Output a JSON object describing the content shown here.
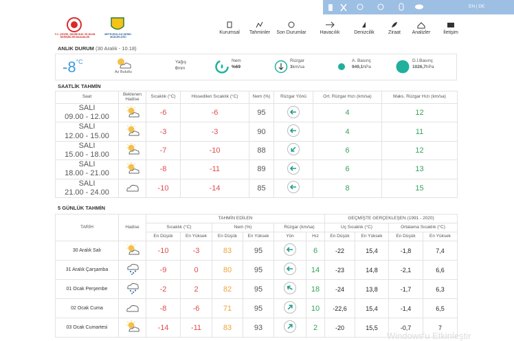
{
  "topbar": {
    "langs": [
      "EN",
      "DE"
    ],
    "separator": "|"
  },
  "header": {
    "org1": "T.C. ÇEVRE, ŞEHİRCİLİK VE İKLİM DEĞİŞİKLİĞİ BAKANLIĞI",
    "org2": "METEOROLOJİ GENEL MÜDÜRLÜĞÜ",
    "nav": [
      "Kurumsal",
      "Tahminler",
      "Son Durumlar",
      "Havacılık",
      "Denizcilik",
      "Ziraat",
      "Analizler",
      "İletişim"
    ]
  },
  "current": {
    "title": "ANLIK DURUM",
    "time": "(30 Aralık - 10.18)",
    "temp": "-8",
    "temp_unit": "°C",
    "condition": "Az Bulutlu",
    "rain_label": "Yağış",
    "rain": "0",
    "rain_unit": "mm",
    "humidity_label": "Nem",
    "humidity": "%69",
    "wind_label": "Rüzgar",
    "wind": "3",
    "wind_unit": "km/sa",
    "pressure_label": "A. Basınç",
    "pressure": "949,1",
    "pressure_unit": "hPa",
    "sea_pressure_label": "D.İ.Basınç",
    "sea_pressure": "1026,7",
    "sea_pressure_unit": "hPa"
  },
  "hourly": {
    "title": "SAATLİK TAHMİN",
    "columns": [
      "Saat",
      "Beklenen Hadise",
      "Sıcaklık (°C)",
      "Hissedilen Sıcaklık (°C)",
      "Nem (%)",
      "Rüzgar Yönü",
      "Ort. Rüzgar Hızı (km/sa)",
      "Maks. Rüzgar Hızı (km/sa)"
    ],
    "rows": [
      {
        "day": "SALI",
        "time": "09.00 - 12.00",
        "temp": "-6",
        "feels": "-6",
        "humidity": "95",
        "wind_avg": "4",
        "wind_max": "12"
      },
      {
        "day": "SALI",
        "time": "12.00 - 15.00",
        "temp": "-3",
        "feels": "-3",
        "humidity": "90",
        "wind_avg": "4",
        "wind_max": "11"
      },
      {
        "day": "SALI",
        "time": "15.00 - 18.00",
        "temp": "-7",
        "feels": "-10",
        "humidity": "88",
        "wind_avg": "6",
        "wind_max": "12"
      },
      {
        "day": "SALI",
        "time": "18.00 - 21.00",
        "temp": "-8",
        "feels": "-11",
        "humidity": "89",
        "wind_avg": "6",
        "wind_max": "13"
      },
      {
        "day": "SALI",
        "time": "21.00 - 24.00",
        "temp": "-10",
        "feels": "-14",
        "humidity": "85",
        "wind_avg": "8",
        "wind_max": "15"
      }
    ]
  },
  "daily": {
    "title": "5 GÜNLÜK TAHMİN",
    "date_header": "TARİH",
    "event_header": "Hadise",
    "forecast_header": "TAHMİN EDİLEN",
    "past_header": "GEÇMİŞTE GERÇEKLEŞEN (1991 - 2020)",
    "groups": [
      "Sıcaklık (°C)",
      "Nem (%)",
      "Rüzgar (km/sa)",
      "Uç Sıcaklık (°C)",
      "Ortalama Sıcaklık (°C)"
    ],
    "subs": [
      "En Düşük",
      "En Yüksek",
      "En Düşük",
      "En Yüksek",
      "Yön",
      "Hız",
      "En Düşük",
      "En Yüksek",
      "En Düşük",
      "En Yüksek"
    ],
    "rows": [
      {
        "date": "30 Aralık Salı",
        "cells": [
          "-10",
          "-3",
          "83",
          "95",
          "6",
          "-22",
          "15,4",
          "-1,8",
          "7,4"
        ]
      },
      {
        "date": "31 Aralık Çarşamba",
        "cells": [
          "-9",
          "0",
          "80",
          "95",
          "14",
          "-23",
          "14,8",
          "-2,1",
          "6,6"
        ]
      },
      {
        "date": "01 Ocak Perşembe",
        "cells": [
          "-2",
          "2",
          "82",
          "95",
          "18",
          "-24",
          "13,8",
          "-1,7",
          "6,3"
        ]
      },
      {
        "date": "02 Ocak Cuma",
        "cells": [
          "-8",
          "-6",
          "71",
          "95",
          "10",
          "-22,6",
          "15,4",
          "-1,4",
          "6,5"
        ]
      },
      {
        "date": "03 Ocak Cumartesi",
        "cells": [
          "-14",
          "-11",
          "83",
          "93",
          "2",
          "-20",
          "15,5",
          "-0,7",
          "7"
        ]
      }
    ]
  },
  "watermark": "Windows'u Etkinleştir"
}
